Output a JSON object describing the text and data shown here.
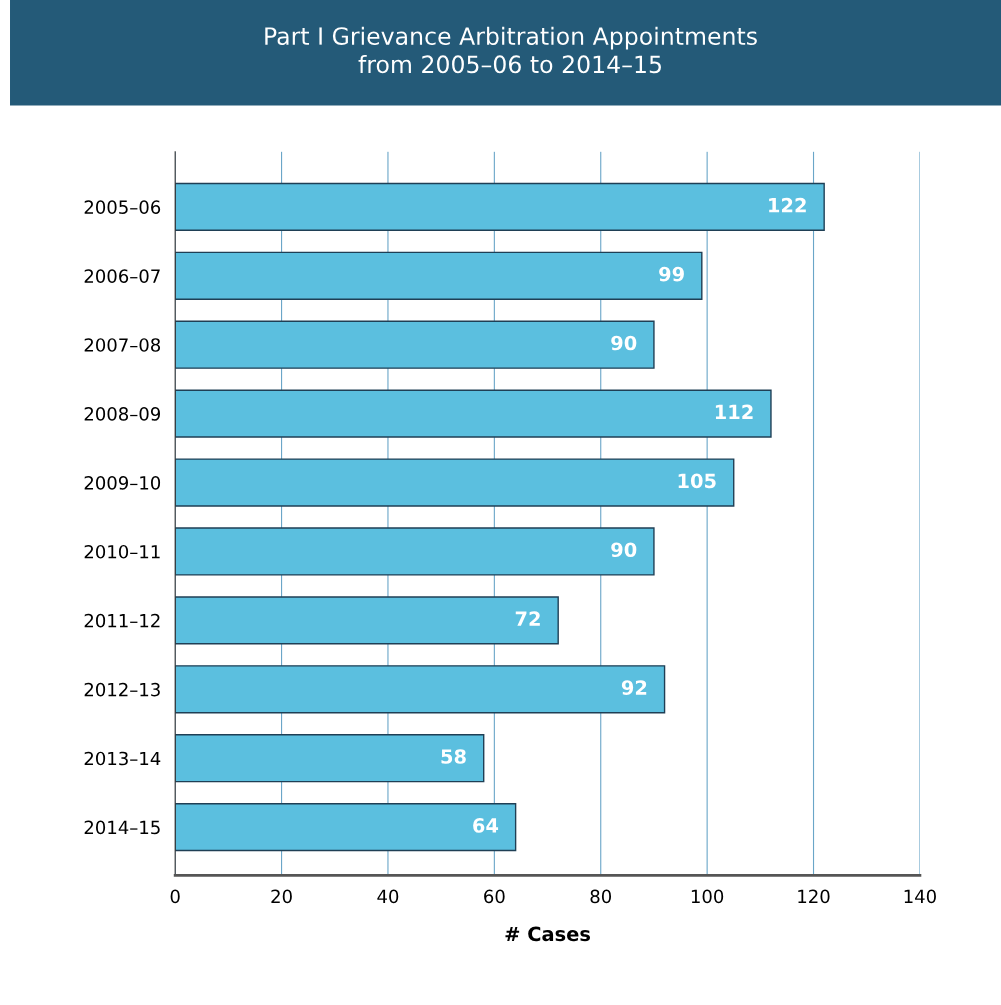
{
  "chart_data": {
    "type": "bar",
    "orientation": "horizontal",
    "title": "Part I Grievance Arbitration Appointments\nfrom 2005–06 to 2014–15",
    "xlabel": "# Cases",
    "categories": [
      "2005–06",
      "2006–07",
      "2007–08",
      "2008–09",
      "2009–10",
      "2010–11",
      "2011–12",
      "2012–13",
      "2013–14",
      "2014–15"
    ],
    "values": [
      122,
      99,
      90,
      112,
      105,
      90,
      72,
      92,
      58,
      64
    ],
    "color": "#5bbfdf",
    "xlim": [
      0,
      140
    ],
    "xticks": [
      0,
      20,
      40,
      60,
      80,
      100,
      120,
      140
    ],
    "grid": "x",
    "data_labels": true,
    "legend": false
  }
}
